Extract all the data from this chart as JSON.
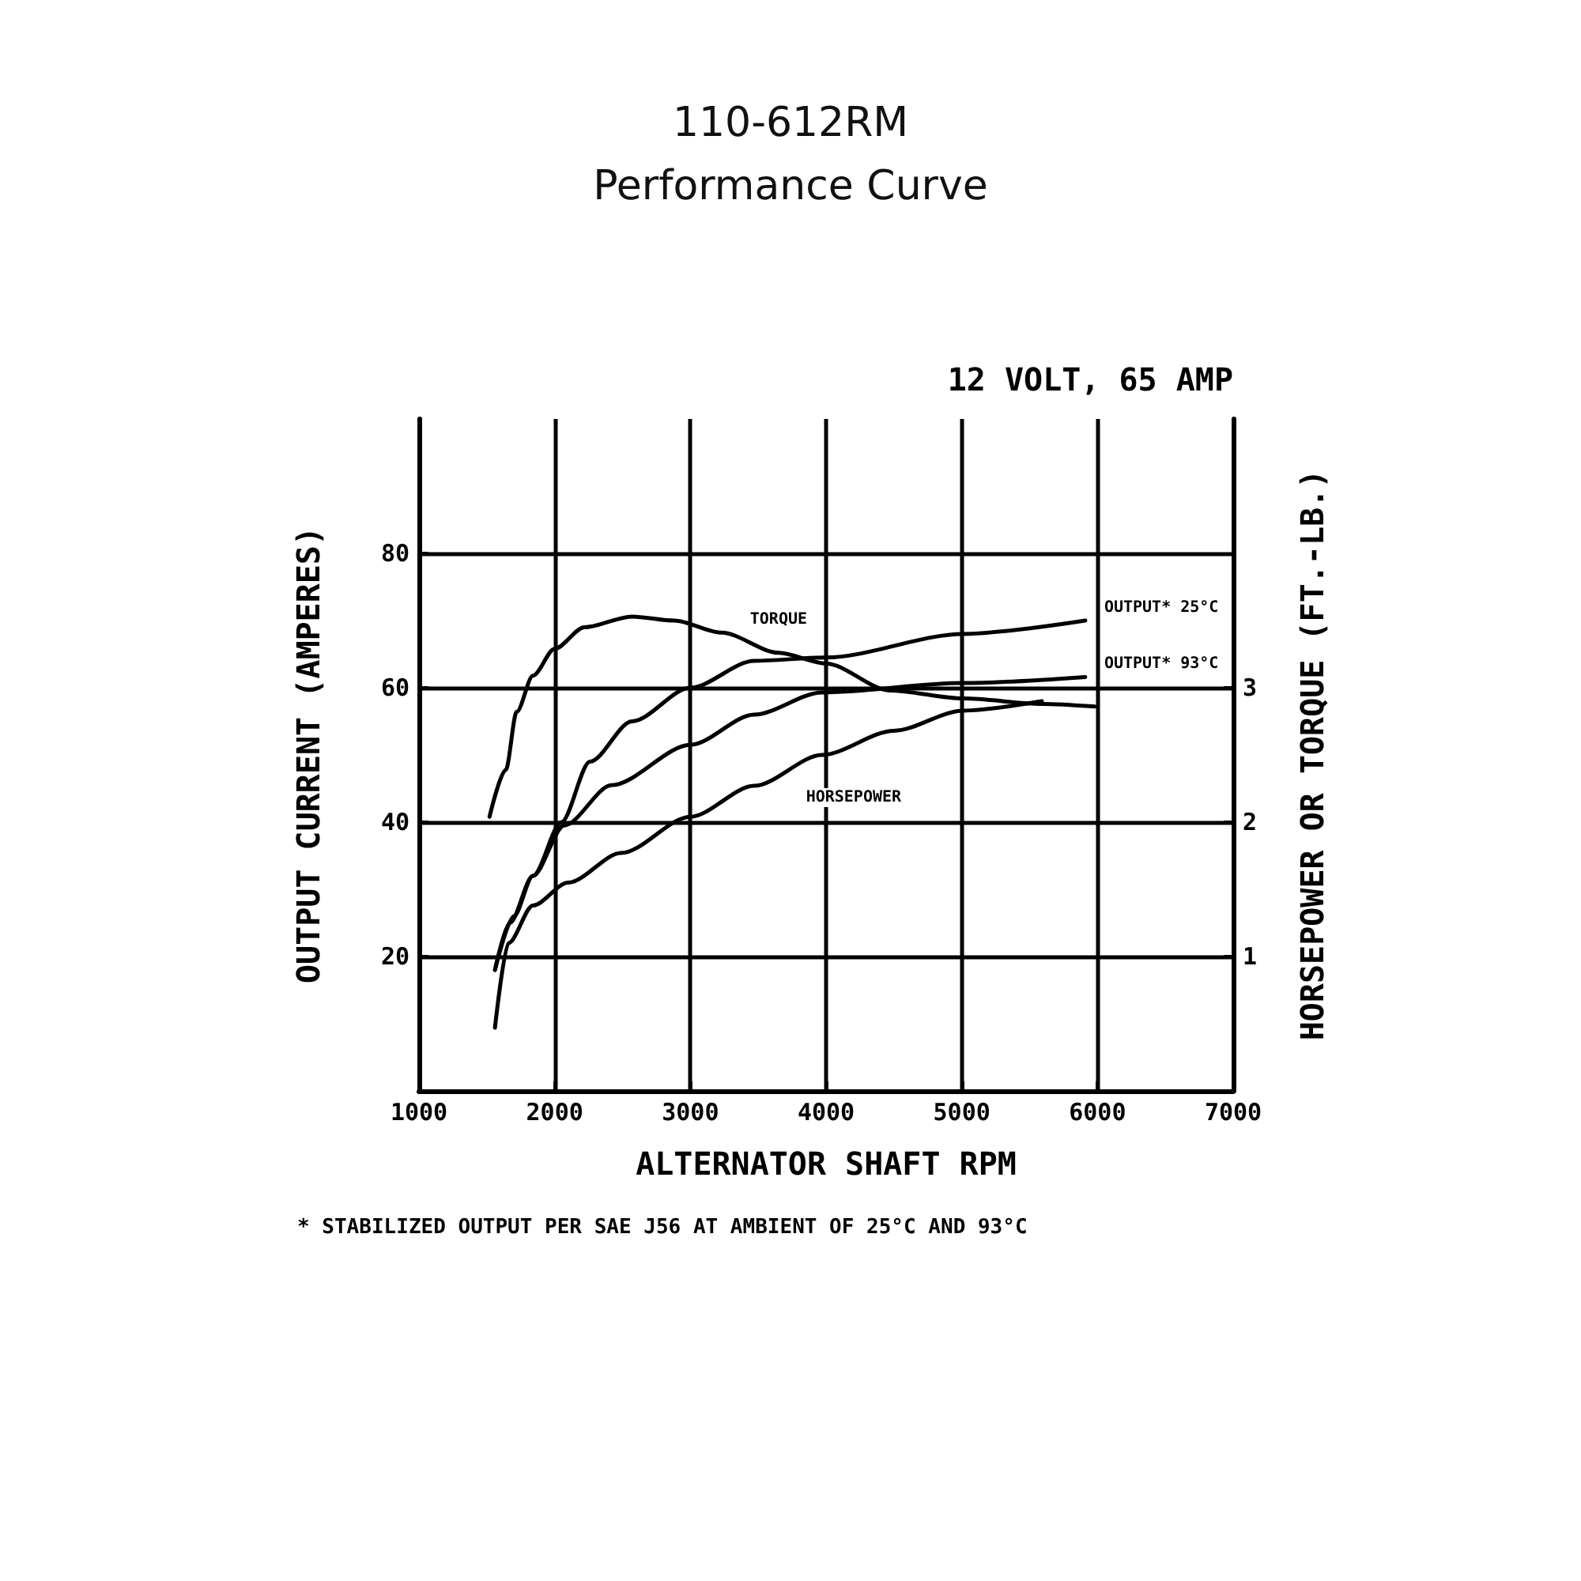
{
  "chart_data": {
    "type": "line",
    "title": "110-612RM",
    "subtitle": "Performance Curve",
    "xlabel": "ALTERNATOR SHAFT RPM",
    "ylabel": "OUTPUT CURRENT (AMPERES)",
    "y2label": "HORSEPOWER OR TORQUE (FT.-LB.)",
    "annotations": [
      "12 VOLT, 65 AMP",
      "* STABILIZED OUTPUT PER SAE J56 AT AMBIENT OF 25°C AND 93°C"
    ],
    "series": [
      {
        "name": "TORQUE",
        "color": "#000000",
        "axis": "y2",
        "x": [
          1520,
          1640,
          1720,
          1840,
          2000,
          2220,
          2570,
          2880,
          3230,
          3650,
          4000,
          4470,
          5010,
          5590,
          5980
        ],
        "values": [
          2.04,
          2.39,
          2.82,
          3.09,
          3.29,
          3.45,
          3.53,
          3.5,
          3.41,
          3.26,
          3.18,
          2.98,
          2.92,
          2.88,
          2.86
        ]
      },
      {
        "name": "OUTPUT* 25°C",
        "color": "#000000",
        "x": [
          1560,
          1670,
          1840,
          2050,
          2260,
          2570,
          3000,
          3470,
          4000,
          5010,
          5910
        ],
        "values": [
          18,
          25,
          32,
          40,
          49,
          55,
          60,
          64,
          64.5,
          68,
          70
        ]
      },
      {
        "name": "OUTPUT* 93°C",
        "color": "#000000",
        "x": [
          1560,
          1700,
          1840,
          2070,
          2420,
          3000,
          3470,
          3970,
          5010,
          5910
        ],
        "values": [
          18,
          26,
          32,
          39.5,
          45.5,
          51.5,
          56,
          59.3,
          60.7,
          61.6
        ]
      },
      {
        "name": "HORSEPOWER",
        "color": "#000000",
        "axis": "y2",
        "x": [
          1560,
          1660,
          1840,
          2100,
          2490,
          3000,
          3470,
          3970,
          4500,
          5010,
          5590
        ],
        "values": [
          0.47,
          1.1,
          1.38,
          1.55,
          1.77,
          2.04,
          2.27,
          2.5,
          2.68,
          2.83,
          2.9
        ]
      }
    ],
    "xlim": [
      1000,
      7000
    ],
    "xticks": [
      1000,
      2000,
      3000,
      4000,
      5000,
      6000,
      7000
    ],
    "ylim": [
      0,
      100
    ],
    "yticks": [
      20,
      40,
      60,
      80
    ],
    "y2lim": [
      0,
      5
    ],
    "y2ticks": [
      1,
      2,
      3
    ],
    "grid": true,
    "legend": false,
    "marker": "none",
    "line_style": "solid"
  }
}
